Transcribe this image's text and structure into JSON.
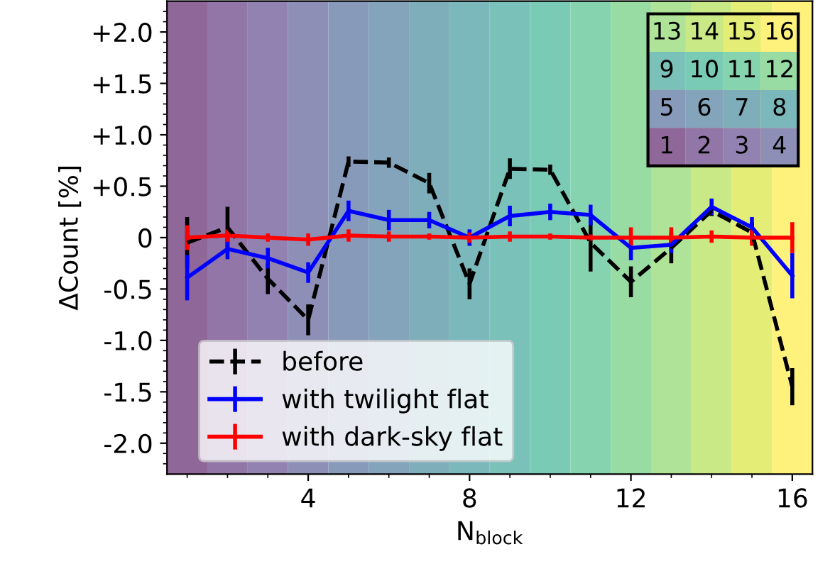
{
  "chart_data": {
    "type": "line",
    "xlabel": "N$_{block}$",
    "ylabel": "ΔCount [%]",
    "x": [
      1,
      2,
      3,
      4,
      5,
      6,
      7,
      8,
      9,
      10,
      11,
      12,
      13,
      14,
      15,
      16
    ],
    "series": [
      {
        "name": "before",
        "color": "#000000",
        "line_style": "dashed",
        "values": [
          -0.05,
          0.1,
          -0.4,
          -0.8,
          0.74,
          0.73,
          0.53,
          -0.45,
          0.67,
          0.66,
          -0.05,
          -0.43,
          -0.1,
          0.26,
          0.05,
          -1.45
        ],
        "errors": [
          0.25,
          0.2,
          0.15,
          0.15,
          0.05,
          0.05,
          0.1,
          0.15,
          0.1,
          0.05,
          0.28,
          0.15,
          0.15,
          0.05,
          0.1,
          0.18
        ]
      },
      {
        "name": "with twilight flat",
        "color": "#0000ff",
        "line_style": "solid",
        "values": [
          -0.39,
          -0.11,
          -0.2,
          -0.34,
          0.26,
          0.17,
          0.17,
          0.0,
          0.21,
          0.25,
          0.22,
          -0.1,
          -0.07,
          0.3,
          0.1,
          -0.37
        ],
        "errors": [
          0.22,
          0.1,
          0.1,
          0.1,
          0.1,
          0.1,
          0.08,
          0.08,
          0.1,
          0.08,
          0.1,
          0.12,
          0.08,
          0.08,
          0.1,
          0.22
        ]
      },
      {
        "name": "with dark-sky flat",
        "color": "#ff0000",
        "line_style": "solid",
        "values": [
          0.0,
          0.02,
          0.0,
          -0.02,
          0.02,
          0.01,
          0.01,
          0.0,
          0.01,
          0.01,
          0.0,
          0.0,
          0.0,
          0.01,
          0.0,
          0.0
        ],
        "errors": [
          0.12,
          0.06,
          0.04,
          0.06,
          0.06,
          0.05,
          0.03,
          0.05,
          0.05,
          0.03,
          0.03,
          0.1,
          0.1,
          0.06,
          0.08,
          0.15
        ]
      }
    ],
    "marker": "none",
    "xlim": [
      0.5,
      16.5
    ],
    "ylim": [
      -2.3,
      2.3
    ],
    "xticks": [
      {
        "value": 1,
        "label": null
      },
      {
        "value": 2,
        "label": null
      },
      {
        "value": 3,
        "label": null
      },
      4,
      {
        "value": 5,
        "label": null
      },
      {
        "value": 6,
        "label": null
      },
      {
        "value": 7,
        "label": null
      },
      8,
      {
        "value": 9,
        "label": null
      },
      {
        "value": 10,
        "label": null
      },
      {
        "value": 11,
        "label": null
      },
      12,
      {
        "value": 13,
        "label": null
      },
      {
        "value": 14,
        "label": null
      },
      {
        "value": 15,
        "label": null
      },
      16
    ],
    "yticks": [
      {
        "value": -2.2,
        "label": null
      },
      {
        "value": -2.1,
        "label": null
      },
      {
        "value": -2.0,
        "label": "-2.0"
      },
      {
        "value": -1.9,
        "label": null
      },
      {
        "value": -1.8,
        "label": null
      },
      {
        "value": -1.7,
        "label": null
      },
      {
        "value": -1.6,
        "label": null
      },
      {
        "value": -1.5,
        "label": "-1.5"
      },
      {
        "value": -1.4,
        "label": null
      },
      {
        "value": -1.3,
        "label": null
      },
      {
        "value": -1.2,
        "label": null
      },
      {
        "value": -1.1,
        "label": null
      },
      {
        "value": -1.0,
        "label": "-1.0"
      },
      {
        "value": -0.9,
        "label": null
      },
      {
        "value": -0.8,
        "label": null
      },
      {
        "value": -0.7,
        "label": null
      },
      {
        "value": -0.6,
        "label": null
      },
      {
        "value": -0.5,
        "label": "-0.5"
      },
      {
        "value": -0.4,
        "label": null
      },
      {
        "value": -0.3,
        "label": null
      },
      {
        "value": -0.2,
        "label": null
      },
      {
        "value": -0.1,
        "label": null
      },
      0,
      {
        "value": 0.1,
        "label": null
      },
      {
        "value": 0.2,
        "label": null
      },
      {
        "value": 0.3,
        "label": null
      },
      {
        "value": 0.4,
        "label": null
      },
      {
        "value": 0.5,
        "label": "+0.5"
      },
      {
        "value": 0.6,
        "label": null
      },
      {
        "value": 0.7,
        "label": null
      },
      {
        "value": 0.8,
        "label": null
      },
      {
        "value": 0.9,
        "label": null
      },
      {
        "value": 1.0,
        "label": "+1.0"
      },
      {
        "value": 1.1,
        "label": null
      },
      {
        "value": 1.2,
        "label": null
      },
      {
        "value": 1.3,
        "label": null
      },
      {
        "value": 1.4,
        "label": null
      },
      {
        "value": 1.5,
        "label": "+1.5"
      },
      {
        "value": 1.6,
        "label": null
      },
      {
        "value": 1.7,
        "label": null
      },
      {
        "value": 1.8,
        "label": null
      },
      {
        "value": 1.9,
        "label": null
      },
      {
        "value": 2.0,
        "label": "+2.0"
      },
      {
        "value": 2.1,
        "label": null
      },
      {
        "value": 2.2,
        "label": null
      }
    ],
    "bands": [
      {
        "axis": "x",
        "from": 0.5,
        "to": 1.5,
        "color": "#8f6798"
      },
      {
        "axis": "x",
        "from": 1.5,
        "to": 2.5,
        "color": "#9176a7"
      },
      {
        "axis": "x",
        "from": 2.5,
        "to": 3.5,
        "color": "#9182b1"
      },
      {
        "axis": "x",
        "from": 3.5,
        "to": 4.5,
        "color": "#8d8fb7"
      },
      {
        "axis": "x",
        "from": 4.5,
        "to": 5.5,
        "color": "#889aba"
      },
      {
        "axis": "x",
        "from": 5.5,
        "to": 6.5,
        "color": "#83a4bb"
      },
      {
        "axis": "x",
        "from": 6.5,
        "to": 7.5,
        "color": "#7faebb"
      },
      {
        "axis": "x",
        "from": 7.5,
        "to": 8.5,
        "color": "#7bb8bb"
      },
      {
        "axis": "x",
        "from": 8.5,
        "to": 9.5,
        "color": "#79c1b9"
      },
      {
        "axis": "x",
        "from": 9.5,
        "to": 10.5,
        "color": "#7acbb5"
      },
      {
        "axis": "x",
        "from": 10.5,
        "to": 11.5,
        "color": "#86d4af"
      },
      {
        "axis": "x",
        "from": 11.5,
        "to": 12.5,
        "color": "#98dca4"
      },
      {
        "axis": "x",
        "from": 12.5,
        "to": 13.5,
        "color": "#afe397"
      },
      {
        "axis": "x",
        "from": 13.5,
        "to": 14.5,
        "color": "#c9e986"
      },
      {
        "axis": "x",
        "from": 14.5,
        "to": 15.5,
        "color": "#e4ee76"
      },
      {
        "axis": "x",
        "from": 15.5,
        "to": 16.5,
        "color": "#fef17c"
      }
    ],
    "annotations": [
      "13",
      "14",
      "15",
      "16",
      "9",
      "10",
      "11",
      "12",
      "5",
      "6",
      "7",
      "8",
      "1",
      "2",
      "3",
      "4"
    ],
    "legend": "bottom left",
    "grid": false
  }
}
